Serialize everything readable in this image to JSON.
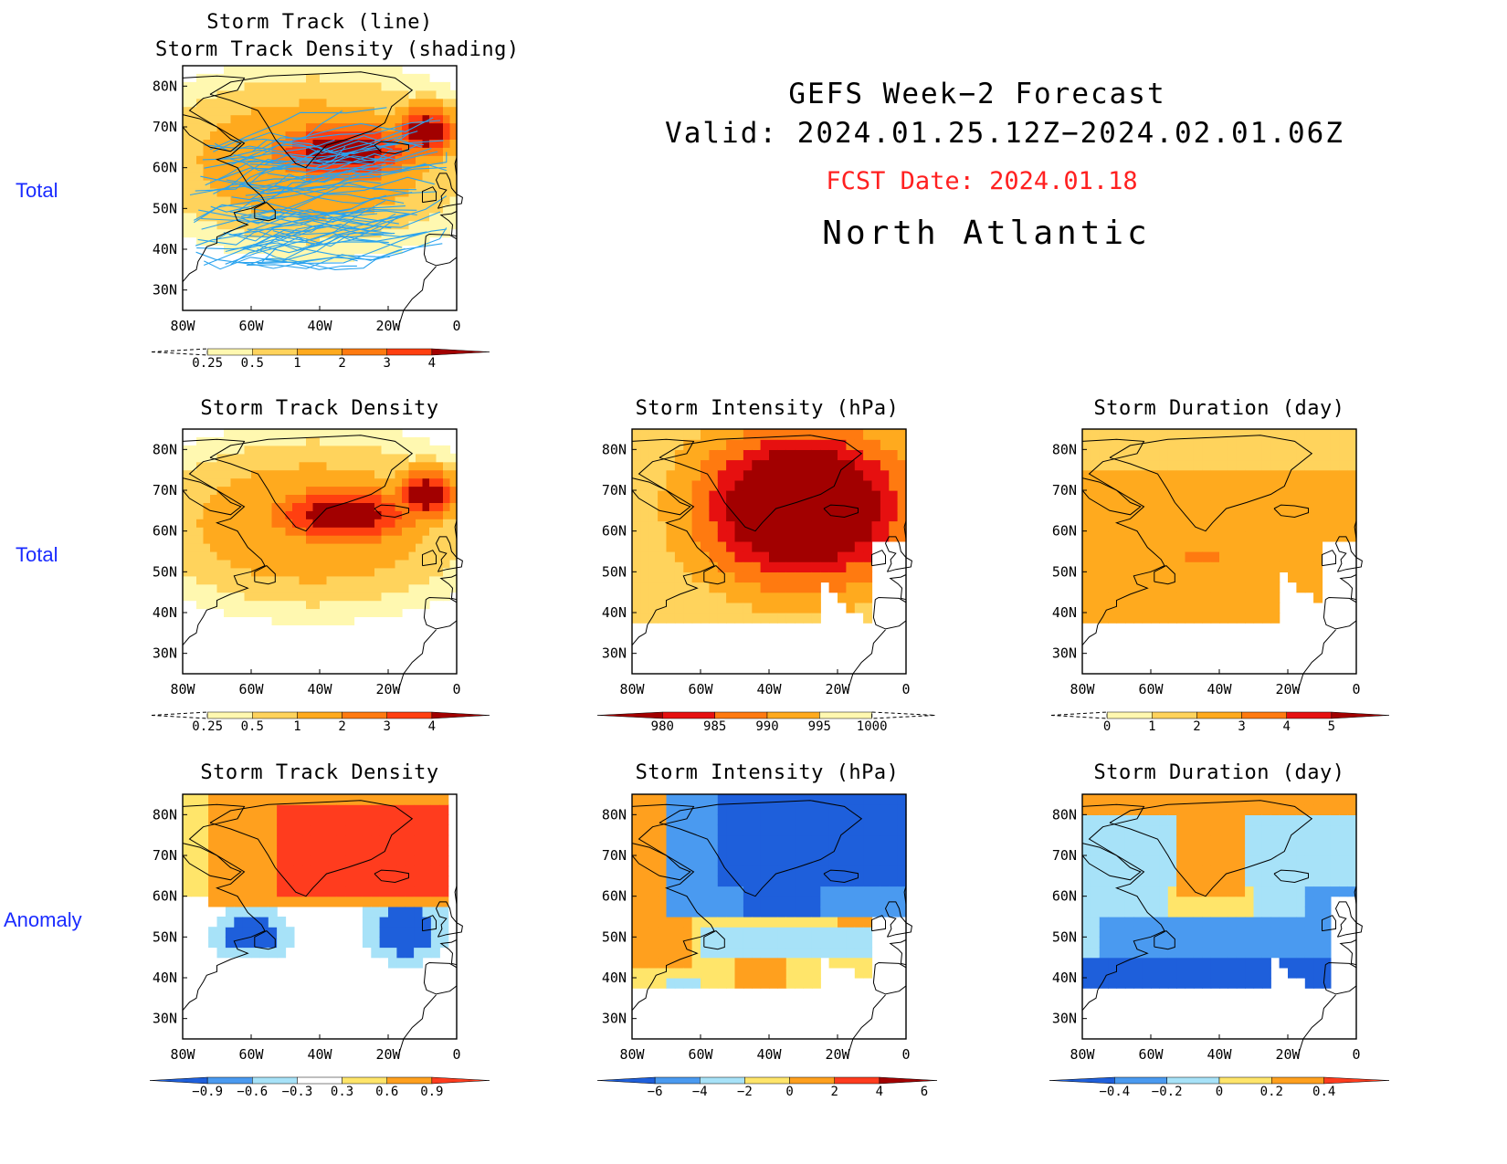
{
  "header": {
    "line1": "GEFS Week−2 Forecast",
    "line2": "Valid: 2024.01.25.12Z−2024.02.01.06Z",
    "fcst": "FCST Date: 2024.01.18",
    "region": "North Atlantic"
  },
  "row_labels": [
    "Total",
    "Total",
    "Anomaly"
  ],
  "axes": {
    "lat_ticks": [
      "80N",
      "70N",
      "60N",
      "50N",
      "40N",
      "30N"
    ],
    "lon_ticks": [
      "80W",
      "60W",
      "40W",
      "20W",
      "0"
    ]
  },
  "colors": {
    "land_outline": "#000000",
    "track_line": "#2aa3ee",
    "warm": [
      "#fff8b0",
      "#ffd35c",
      "#ffaa1e",
      "#ff7a10",
      "#ff3f10",
      "#e61010",
      "#a20000"
    ],
    "cool": [
      "#1e5fdb",
      "#4a9af0",
      "#a7e2f8",
      "#ffe56a",
      "#ffa01e",
      "#ff3c1e"
    ]
  },
  "panels": [
    {
      "id": "track",
      "title": "Storm Track (line)\nStorm Track Density (shading)",
      "type": "density",
      "tracks": true,
      "colorbar": {
        "labels": [
          "0.25",
          "0.5",
          "1",
          "2",
          "3",
          "4"
        ],
        "colors": [
          "#fff8b0",
          "#ffd35c",
          "#ffaa1e",
          "#ff7a10",
          "#ff3f10",
          "#a20000"
        ],
        "left_dashed": true
      }
    },
    {
      "id": "density",
      "title": "Storm Track Density",
      "type": "density",
      "colorbar": {
        "labels": [
          "0.25",
          "0.5",
          "1",
          "2",
          "3",
          "4"
        ],
        "colors": [
          "#fff8b0",
          "#ffd35c",
          "#ffaa1e",
          "#ff7a10",
          "#ff3f10",
          "#a20000"
        ],
        "left_dashed": true
      }
    },
    {
      "id": "intensity",
      "title": "Storm Intensity (hPa)",
      "type": "intensity",
      "colorbar": {
        "labels": [
          "980",
          "985",
          "990",
          "995",
          "1000"
        ],
        "colors": [
          "#a20000",
          "#e61010",
          "#ff7a10",
          "#ffaa1e",
          "#fff8b0"
        ],
        "right_dashed": true
      }
    },
    {
      "id": "duration",
      "title": "Storm Duration (day)",
      "type": "duration",
      "colorbar": {
        "labels": [
          "0",
          "1",
          "2",
          "3",
          "4",
          "5"
        ],
        "colors": [
          "#fff8b0",
          "#ffd35c",
          "#ffaa1e",
          "#ff7a10",
          "#e61010",
          "#a20000"
        ],
        "left_dashed": true
      }
    },
    {
      "id": "density-anom",
      "title": "Storm Track Density",
      "type": "density_anom",
      "colorbar": {
        "labels": [
          "−0.9",
          "−0.6",
          "−0.3",
          "0.3",
          "0.6",
          "0.9"
        ],
        "colors": [
          "#1e5fdb",
          "#4a9af0",
          "#a7e2f8",
          "#ffffff",
          "#ffe56a",
          "#ffa01e",
          "#ff3c1e"
        ]
      }
    },
    {
      "id": "intensity-anom",
      "title": "Storm Intensity (hPa)",
      "type": "intensity_anom",
      "colorbar": {
        "labels": [
          "−6",
          "−4",
          "−2",
          "0",
          "2",
          "4",
          "6"
        ],
        "colors": [
          "#1e5fdb",
          "#4a9af0",
          "#a7e2f8",
          "#ffe56a",
          "#ffa01e",
          "#ff3c1e",
          "#a20000"
        ]
      }
    },
    {
      "id": "duration-anom",
      "title": "Storm Duration (day)",
      "type": "duration_anom",
      "colorbar": {
        "labels": [
          "−0.4",
          "−0.2",
          "0",
          "0.2",
          "0.4"
        ],
        "colors": [
          "#1e5fdb",
          "#4a9af0",
          "#a7e2f8",
          "#ffe56a",
          "#ffa01e",
          "#ff3c1e"
        ]
      }
    }
  ]
}
